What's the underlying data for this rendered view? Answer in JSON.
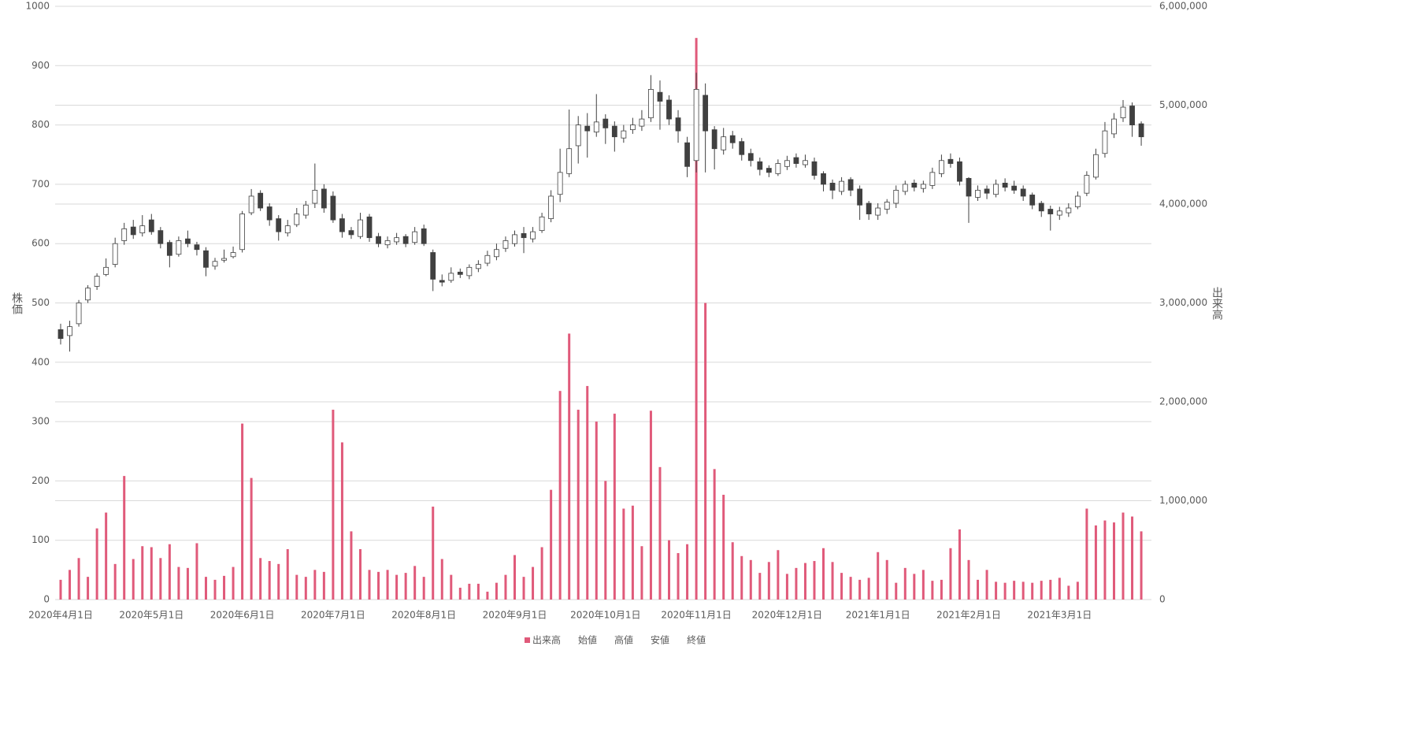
{
  "chart_data": {
    "type": "candlestick",
    "categories": [
      "2020年4月1日",
      null,
      null,
      null,
      null,
      null,
      null,
      null,
      null,
      null,
      "2020年5月1日",
      null,
      null,
      null,
      null,
      null,
      null,
      null,
      null,
      null,
      "2020年6月1日",
      null,
      null,
      null,
      null,
      null,
      null,
      null,
      null,
      null,
      "2020年7月1日",
      null,
      null,
      null,
      null,
      null,
      null,
      null,
      null,
      null,
      "2020年8月1日",
      null,
      null,
      null,
      null,
      null,
      null,
      null,
      null,
      null,
      "2020年9月1日",
      null,
      null,
      null,
      null,
      null,
      null,
      null,
      null,
      null,
      "2020年10月1日",
      null,
      null,
      null,
      null,
      null,
      null,
      null,
      null,
      null,
      "2020年11月1日",
      null,
      null,
      null,
      null,
      null,
      null,
      null,
      null,
      null,
      "2020年12月1日",
      null,
      null,
      null,
      null,
      null,
      null,
      null,
      null,
      null,
      "2021年1月1日",
      null,
      null,
      null,
      null,
      null,
      null,
      null,
      null,
      null,
      "2021年2月1日",
      null,
      null,
      null,
      null,
      null,
      null,
      null,
      null,
      null,
      "2021年3月1日",
      null,
      null,
      null,
      null,
      null,
      null,
      null,
      null,
      null
    ],
    "series": [
      {
        "name": "出来高",
        "color": "#e05a7a",
        "axis": "y2",
        "values": [
          200000,
          300000,
          420000,
          230000,
          720000,
          880000,
          360000,
          1250000,
          410000,
          540000,
          530000,
          420000,
          560000,
          330000,
          320000,
          570000,
          230000,
          200000,
          240000,
          330000,
          1780000,
          1230000,
          420000,
          390000,
          360000,
          510000,
          250000,
          230000,
          300000,
          280000,
          1920000,
          1590000,
          690000,
          510000,
          300000,
          280000,
          300000,
          250000,
          270000,
          340000,
          230000,
          940000,
          410000,
          250000,
          120000,
          160000,
          160000,
          80000,
          170000,
          250000,
          450000,
          230000,
          330000,
          530000,
          1110000,
          2110000,
          2690000,
          1920000,
          2160000,
          1800000,
          1200000,
          1880000,
          920000,
          950000,
          540000,
          1910000,
          1340000,
          600000,
          470000,
          560000,
          5680000,
          3000000,
          1320000,
          1060000,
          580000,
          440000,
          400000,
          270000,
          380000,
          500000,
          260000,
          320000,
          370000,
          390000,
          520000,
          380000,
          270000,
          230000,
          200000,
          220000,
          480000,
          400000,
          170000,
          320000,
          260000,
          300000,
          190000,
          200000,
          520000,
          710000,
          400000,
          200000,
          300000,
          180000,
          170000,
          190000,
          180000,
          170000,
          190000,
          200000,
          220000,
          140000,
          180000,
          920000,
          750000,
          800000,
          780000,
          880000,
          840000,
          690000
        ]
      },
      {
        "name": "始値",
        "values": [
          455,
          445,
          465,
          505,
          528,
          548,
          565,
          605,
          628,
          618,
          640,
          622,
          602,
          582,
          608,
          598,
          588,
          562,
          572,
          578,
          590,
          652,
          685,
          662,
          642,
          618,
          632,
          648,
          668,
          692,
          680,
          642,
          622,
          612,
          645,
          612,
          598,
          603,
          612,
          602,
          625,
          585,
          538,
          538,
          552,
          546,
          558,
          567,
          578,
          592,
          600,
          617,
          608,
          622,
          642,
          683,
          718,
          765,
          798,
          788,
          810,
          798,
          778,
          792,
          798,
          812,
          855,
          842,
          812,
          770,
          740,
          850,
          792,
          758,
          782,
          772,
          752,
          738,
          727,
          718,
          730,
          745,
          733,
          738,
          718,
          702,
          688,
          708,
          692,
          668,
          648,
          658,
          668,
          688,
          702,
          693,
          698,
          718,
          742,
          738,
          710,
          678,
          692,
          683,
          702,
          697,
          692,
          682,
          668,
          658,
          648,
          652,
          662,
          685,
          712,
          752,
          785,
          812,
          832,
          802
        ]
      },
      {
        "name": "高値",
        "values": [
          465,
          470,
          505,
          530,
          550,
          575,
          610,
          635,
          640,
          648,
          650,
          628,
          606,
          612,
          622,
          603,
          594,
          576,
          590,
          595,
          655,
          692,
          690,
          668,
          648,
          640,
          660,
          672,
          735,
          700,
          688,
          650,
          628,
          652,
          650,
          618,
          612,
          618,
          616,
          628,
          632,
          590,
          548,
          560,
          558,
          565,
          572,
          588,
          600,
          612,
          622,
          628,
          628,
          652,
          690,
          760,
          826,
          815,
          820,
          852,
          818,
          806,
          800,
          812,
          825,
          884,
          875,
          850,
          825,
          780,
          888,
          870,
          798,
          795,
          790,
          778,
          760,
          745,
          732,
          742,
          748,
          752,
          750,
          745,
          722,
          708,
          712,
          712,
          698,
          672,
          668,
          675,
          698,
          706,
          708,
          706,
          728,
          750,
          752,
          745,
          712,
          698,
          698,
          708,
          710,
          706,
          698,
          686,
          672,
          664,
          662,
          668,
          688,
          722,
          760,
          805,
          820,
          842,
          838,
          806
        ]
      },
      {
        "name": "安値",
        "values": [
          430,
          418,
          460,
          500,
          522,
          545,
          560,
          598,
          608,
          612,
          615,
          592,
          560,
          578,
          594,
          580,
          545,
          556,
          568,
          575,
          585,
          648,
          655,
          630,
          605,
          612,
          628,
          642,
          660,
          652,
          635,
          610,
          608,
          608,
          603,
          594,
          592,
          598,
          594,
          598,
          596,
          520,
          528,
          534,
          542,
          540,
          552,
          562,
          572,
          586,
          595,
          584,
          602,
          618,
          636,
          670,
          712,
          735,
          745,
          780,
          768,
          755,
          770,
          785,
          790,
          805,
          792,
          800,
          770,
          712,
          720,
          720,
          725,
          750,
          760,
          740,
          730,
          715,
          712,
          714,
          724,
          728,
          728,
          708,
          688,
          675,
          682,
          680,
          640,
          640,
          640,
          650,
          660,
          682,
          688,
          686,
          692,
          712,
          728,
          698,
          635,
          672,
          675,
          678,
          688,
          684,
          672,
          658,
          645,
          622,
          640,
          645,
          658,
          680,
          708,
          745,
          778,
          805,
          780,
          765
        ]
      },
      {
        "name": "終値",
        "values": [
          440,
          460,
          500,
          525,
          545,
          560,
          600,
          625,
          615,
          630,
          620,
          600,
          580,
          605,
          600,
          590,
          560,
          570,
          575,
          585,
          650,
          680,
          660,
          640,
          620,
          630,
          650,
          665,
          690,
          660,
          640,
          620,
          615,
          640,
          610,
          600,
          605,
          610,
          600,
          620,
          600,
          540,
          535,
          550,
          548,
          560,
          565,
          580,
          590,
          605,
          615,
          610,
          620,
          645,
          680,
          720,
          760,
          800,
          790,
          805,
          795,
          780,
          790,
          800,
          810,
          860,
          840,
          810,
          790,
          730,
          860,
          790,
          760,
          780,
          770,
          750,
          740,
          725,
          720,
          735,
          740,
          735,
          740,
          715,
          700,
          690,
          705,
          690,
          665,
          650,
          660,
          670,
          690,
          700,
          695,
          700,
          720,
          740,
          735,
          705,
          680,
          690,
          685,
          700,
          695,
          690,
          680,
          665,
          655,
          650,
          655,
          660,
          680,
          715,
          750,
          790,
          810,
          830,
          800,
          780
        ]
      }
    ],
    "candle_up_color": "#ffffff",
    "candle_down_color": "#404040",
    "y_label": "株価",
    "y2_label": "出来高",
    "ylim": [
      0,
      1000
    ],
    "yticks": [
      0,
      100,
      200,
      300,
      400,
      500,
      600,
      700,
      800,
      900,
      1000
    ],
    "y2lim": [
      0,
      6000000
    ],
    "y2ticks": [
      0,
      {
        "value": 1000000,
        "label": "1,000,000"
      },
      {
        "value": 2000000,
        "label": "2,000,000"
      },
      {
        "value": 3000000,
        "label": "3,000,000"
      },
      {
        "value": 4000000,
        "label": "4,000,000"
      },
      {
        "value": 5000000,
        "label": "5,000,000"
      },
      {
        "value": 6000000,
        "label": "6,000,000"
      }
    ],
    "grid": true,
    "legend": "bottom"
  }
}
